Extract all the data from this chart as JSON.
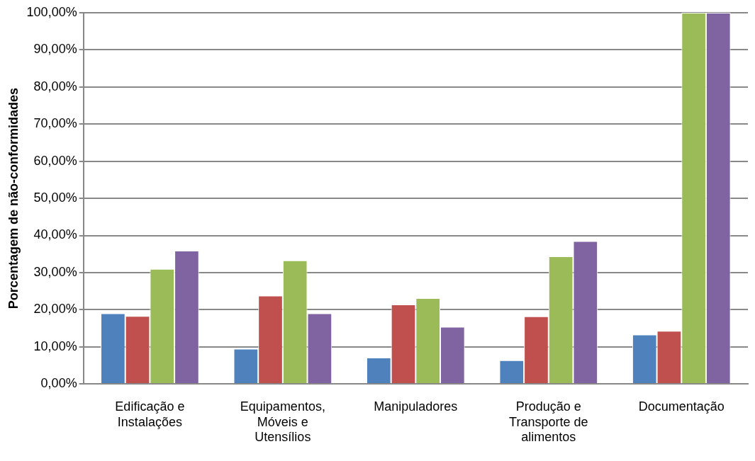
{
  "chart_data": {
    "type": "bar",
    "ylabel": "Porcentagem de não-conformidades",
    "categories": [
      "Edificação e Instalações",
      "Equipamentos, Móveis e Utensílios",
      "Manipuladores",
      "Produção e Transporte de alimentos",
      "Documentação"
    ],
    "series": [
      {
        "color": "#4f81bd",
        "values": [
          19,
          9.5,
          7.1,
          6.4,
          13.3
        ]
      },
      {
        "color": "#c0504d",
        "values": [
          18.3,
          23.8,
          21.4,
          18.2,
          14.3
        ]
      },
      {
        "color": "#9bbb59",
        "values": [
          31,
          33.3,
          23.1,
          34.4,
          100
        ]
      },
      {
        "color": "#8064a2",
        "values": [
          35.9,
          19,
          15.4,
          38.5,
          100
        ]
      }
    ],
    "ylim": [
      0,
      100
    ],
    "yticks": [
      {
        "value": 0,
        "label": "0,00%"
      },
      {
        "value": 10,
        "label": "10,00%"
      },
      {
        "value": 20,
        "label": "20,00%"
      },
      {
        "value": 30,
        "label": "30,00%"
      },
      {
        "value": 40,
        "label": "40,00%"
      },
      {
        "value": 50,
        "label": "50,00%"
      },
      {
        "value": 60,
        "label": "60,00%"
      },
      {
        "value": 70,
        "label": "70,00%"
      },
      {
        "value": 80,
        "label": "80,00%"
      },
      {
        "value": 90,
        "label": "90,00%"
      },
      {
        "value": 100,
        "label": "100,00%"
      }
    ],
    "grid": "y",
    "legend": false
  }
}
